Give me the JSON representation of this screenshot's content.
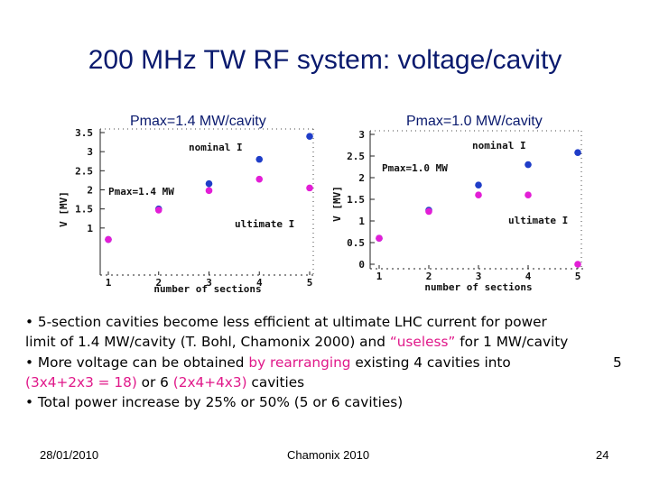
{
  "slide": {
    "title": "200 MHz TW RF system: voltage/cavity",
    "footer_date": "28/01/2010",
    "footer_center": "Chamonix 2010",
    "page_number": "24"
  },
  "chart_data": [
    {
      "type": "scatter",
      "title": "Pmax=1.4 MW/cavity",
      "xlabel": "number of sections",
      "ylabel": "V [MV]",
      "xlim": [
        1,
        5
      ],
      "ylim": [
        0.5,
        3.5
      ],
      "xticks": [
        1,
        2,
        3,
        4,
        5
      ],
      "yticks": [
        1,
        1.5,
        2,
        2.5,
        3,
        3.5
      ],
      "annotations": [
        "nominal I",
        "Pmax=1.4 MW",
        "ultimate I"
      ],
      "series": [
        {
          "name": "nominal I",
          "color": "#1f3dc8",
          "x": [
            1,
            2,
            3,
            4,
            5
          ],
          "y": [
            0.7,
            1.5,
            2.16,
            2.8,
            3.4
          ]
        },
        {
          "name": "ultimate I",
          "color": "#e31ed6",
          "x": [
            1,
            2,
            3,
            4,
            5
          ],
          "y": [
            0.7,
            1.47,
            1.98,
            2.28,
            2.05
          ]
        }
      ]
    },
    {
      "type": "scatter",
      "title": "Pmax=1.0 MW/cavity",
      "xlabel": "number of sections",
      "ylabel": "V [MV]",
      "xlim": [
        1,
        5
      ],
      "ylim": [
        0,
        3
      ],
      "xticks": [
        1,
        2,
        3,
        4,
        5
      ],
      "yticks": [
        0,
        0.5,
        1,
        1.5,
        2,
        2.5,
        3
      ],
      "annotations": [
        "nominal I",
        "Pmax=1.0 MW",
        "ultimate I"
      ],
      "series": [
        {
          "name": "nominal I",
          "color": "#1f3dc8",
          "x": [
            1,
            2,
            3,
            4,
            5
          ],
          "y": [
            0.6,
            1.25,
            1.83,
            2.3,
            2.58
          ]
        },
        {
          "name": "ultimate I",
          "color": "#e31ed6",
          "x": [
            1,
            2,
            3,
            4,
            5
          ],
          "y": [
            0.6,
            1.22,
            1.6,
            1.6,
            0.0
          ]
        }
      ]
    }
  ],
  "bullets": {
    "l1": "• 5-section cavities become less efficient at ultimate LHC current for power",
    "l2a": "limit of 1.4 MW/cavity (T. Bohl, Chamonix 2000) and ",
    "l2b": "“useless”",
    "l2c": " for 1 MW/cavity",
    "l3a": "•  More voltage can be obtained ",
    "l3b": "by rearranging",
    "l3c": " existing 4 cavities into",
    "l3d": "5",
    "l4a": "(3x4+2x3 = 18)",
    "l4b": " or 6 ",
    "l4c": "(2x4+4x3)",
    "l4d": " cavities",
    "l5": "•  Total power increase by 25% or 50% (5 or 6 cavities)"
  }
}
